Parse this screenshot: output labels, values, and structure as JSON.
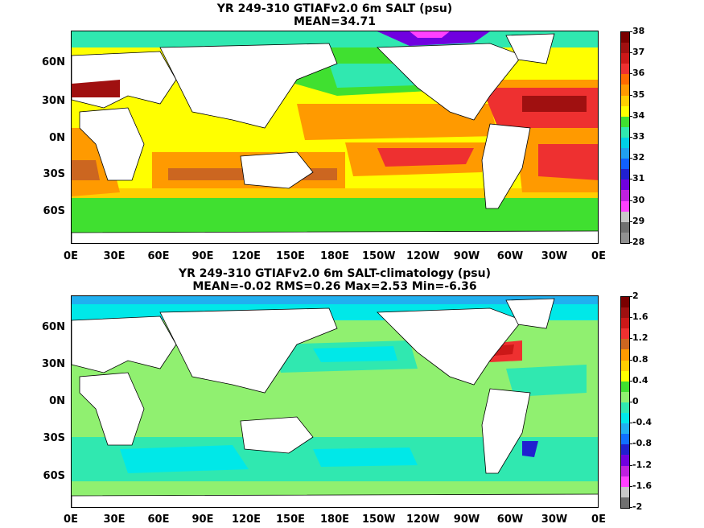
{
  "panels": [
    {
      "title_line1": "YR 249-310 GTIAFv2.0 6m SALT (psu)",
      "title_line2": "MEAN=34.71",
      "colorbar": {
        "labels": [
          "38",
          "37",
          "36",
          "35",
          "34",
          "33",
          "32",
          "31",
          "30",
          "29",
          "28"
        ],
        "colors": [
          "#7a0000",
          "#a01010",
          "#cc1818",
          "#ee3030",
          "#ff6a00",
          "#ff9a00",
          "#ffcf00",
          "#ffff00",
          "#40e030",
          "#30e8b0",
          "#00d0e8",
          "#20a0f0",
          "#1060ff",
          "#2020d0",
          "#7000e0",
          "#c020e0",
          "#ff40ff",
          "#c8c8c8",
          "#707070",
          "#909090"
        ]
      }
    },
    {
      "title_line1": "YR 249-310 GTIAFv2.0 6m SALT-climatology (psu)",
      "title_line2": "MEAN=-0.02   RMS=0.26   Max=2.53   Min=-6.36",
      "colorbar": {
        "labels": [
          "2",
          "1.6",
          "1.2",
          "0.8",
          "0.4",
          "0",
          "-0.4",
          "-0.8",
          "-1.2",
          "-1.6",
          "-2"
        ],
        "colors": [
          "#7a0000",
          "#a01010",
          "#cc1818",
          "#ee3030",
          "#cc6620",
          "#ff9a00",
          "#ffcf00",
          "#ffff00",
          "#40e030",
          "#90f070",
          "#30e8b0",
          "#00e8e8",
          "#20b0f0",
          "#1070ff",
          "#2020d0",
          "#7000e0",
          "#c020e0",
          "#ff40ff",
          "#c8c8c8",
          "#707070"
        ]
      }
    }
  ],
  "axes": {
    "lat_labels": [
      "60N",
      "30N",
      "0N",
      "30S",
      "60S"
    ],
    "lon_labels": [
      "0E",
      "30E",
      "60E",
      "90E",
      "120E",
      "150E",
      "180E",
      "150W",
      "120W",
      "90W",
      "60W",
      "30W",
      "0E"
    ]
  },
  "colors": {
    "ocean_mean": "#ffff00",
    "land": "#ffffff",
    "ocean_anomaly": "#90f070"
  }
}
